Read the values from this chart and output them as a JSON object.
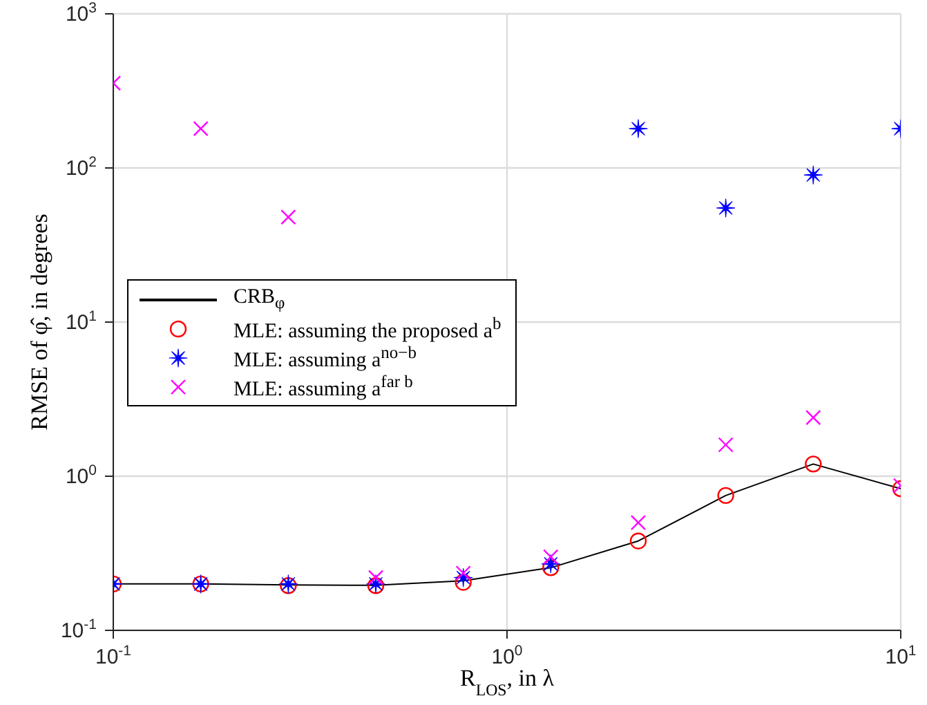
{
  "chart_data": {
    "type": "line",
    "xlabel": "R$_{LOS}$, in λ",
    "ylabel": "RMSE of φ̂, in degrees",
    "log": "xy",
    "grid": true,
    "legend": "left",
    "x": [
      0.1,
      0.1668,
      0.2783,
      0.4642,
      0.7743,
      1.2915,
      2.1544,
      3.5938,
      5.9948,
      10
    ],
    "xlim": [
      0.1,
      10
    ],
    "xticks": [
      {
        "value": 0.1,
        "label": "10$^{-1}$"
      },
      {
        "value": 1,
        "label": "10$^{0}$"
      },
      {
        "value": 10,
        "label": "10$^{1}$"
      }
    ],
    "ylim": [
      0.1,
      1000
    ],
    "yticks": [
      {
        "value": 0.1,
        "label": "10$^{-1}$"
      },
      {
        "value": 1,
        "label": "10$^{0}$"
      },
      {
        "value": 10,
        "label": "10$^{1}$"
      },
      {
        "value": 100,
        "label": "10$^{2}$"
      },
      {
        "value": 1000,
        "label": "10$^{3}$"
      }
    ],
    "series": [
      {
        "name": "CRB$_{φ}$",
        "color": "#000000",
        "line_style": "solid",
        "values": [
          0.2,
          0.2,
          0.197,
          0.196,
          0.21,
          0.255,
          0.38,
          0.75,
          1.2,
          0.83
        ]
      },
      {
        "name": "MLE: assuming the proposed a$^{b}$",
        "type": "scatter",
        "marker": "circle",
        "color": "#ff0000",
        "values": [
          0.2,
          0.2,
          0.195,
          0.195,
          0.205,
          0.255,
          0.38,
          0.75,
          1.2,
          0.83
        ]
      },
      {
        "name": "MLE: assuming a$^{no−b}$",
        "type": "scatter",
        "marker": "star",
        "color": "#0000ff",
        "values": [
          0.2,
          0.2,
          0.2,
          0.2,
          0.22,
          0.27,
          180,
          55,
          90,
          180
        ]
      },
      {
        "name": "MLE: assuming a$^{far b}$",
        "type": "scatter",
        "marker": "cross",
        "color": "#ff00ff",
        "values": [
          355,
          180,
          48,
          0.22,
          0.235,
          0.3,
          0.5,
          1.6,
          2.4,
          0.87
        ]
      }
    ]
  }
}
